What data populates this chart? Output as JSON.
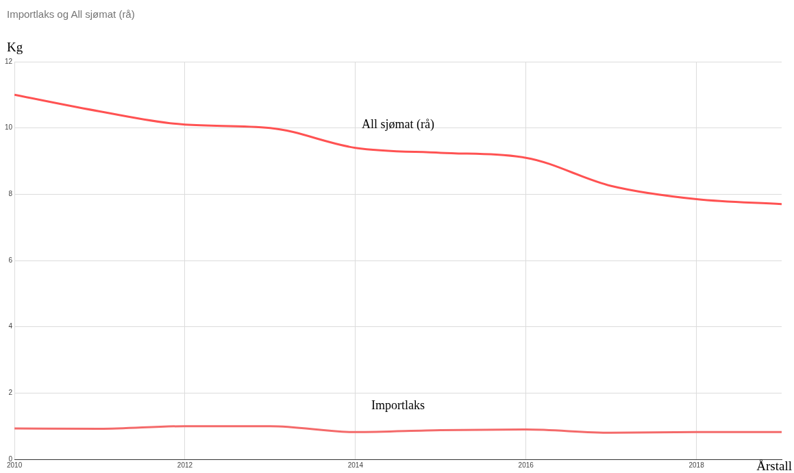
{
  "chart_data": {
    "type": "line",
    "title": "Importlaks og All sjømat (rå)",
    "xlabel": "Årstall",
    "ylabel": "Kg",
    "x": [
      2010,
      2011,
      2012,
      2013,
      2014,
      2015,
      2016,
      2017,
      2018,
      2019
    ],
    "series": [
      {
        "name": "All sjømat (rå)",
        "color": "#ff5252",
        "values": [
          11.0,
          10.5,
          10.1,
          10.0,
          9.4,
          9.25,
          9.1,
          8.25,
          7.85,
          7.7
        ]
      },
      {
        "name": "Importlaks",
        "color": "#f46a6a",
        "values": [
          0.93,
          0.92,
          1.0,
          1.0,
          0.82,
          0.88,
          0.9,
          0.8,
          0.82,
          0.82
        ]
      }
    ],
    "xlim": [
      2010,
      2019
    ],
    "xticks": [
      2010,
      2012,
      2014,
      2016,
      2018
    ],
    "ylim": [
      0,
      12
    ],
    "yticks": [
      0,
      2,
      4,
      6,
      8,
      10,
      12
    ],
    "grid": true,
    "legend": false,
    "marker": "none",
    "line_style": "solid"
  }
}
